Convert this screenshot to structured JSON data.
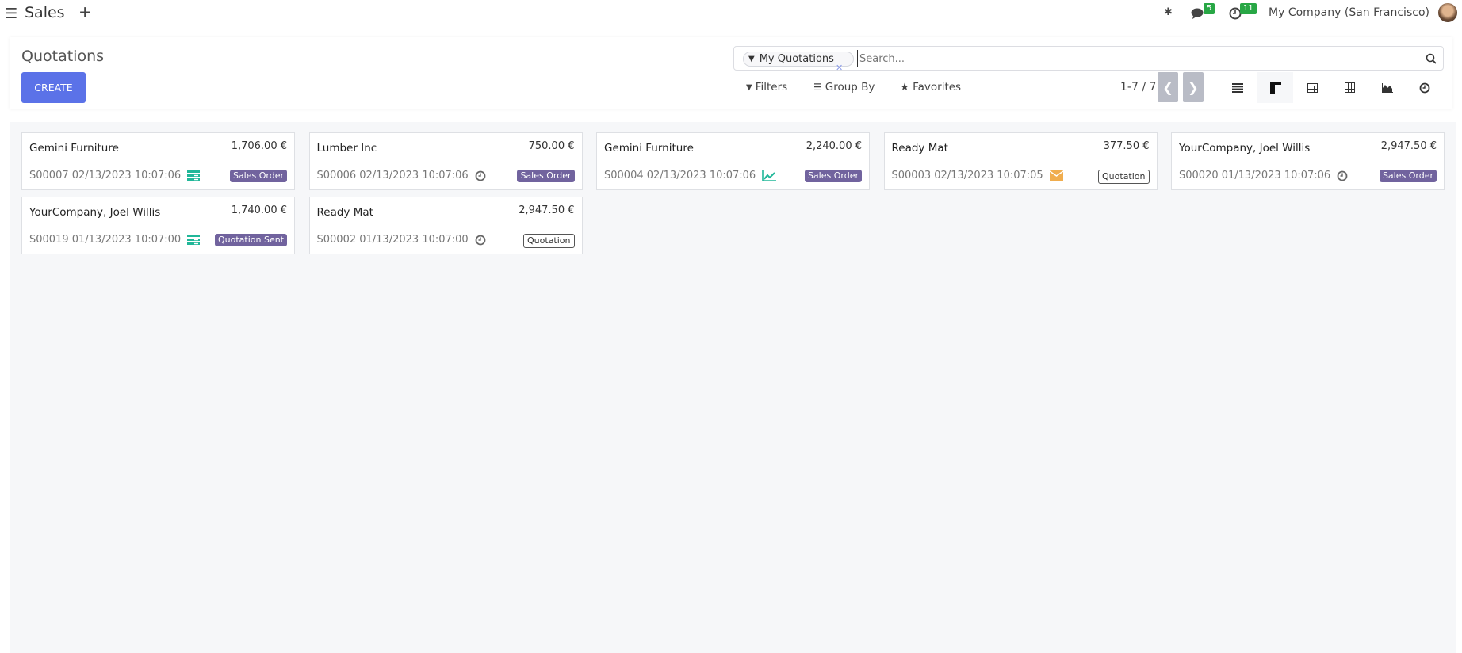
{
  "navbar": {
    "app_title": "Sales",
    "company": "My Company (San Francisco)",
    "messages_count": "5",
    "activities_count": "11"
  },
  "control_panel": {
    "title": "Quotations",
    "create_label": "CREATE",
    "search": {
      "facet": "My Quotations",
      "placeholder": "Search..."
    },
    "filters_label": "Filters",
    "group_by_label": "Group By",
    "favorites_label": "Favorites",
    "pager": "1-7 / 7",
    "views": [
      {
        "name": "list",
        "active": false
      },
      {
        "name": "kanban",
        "active": true
      },
      {
        "name": "calendar",
        "active": false
      },
      {
        "name": "pivot",
        "active": false
      },
      {
        "name": "graph",
        "active": false
      },
      {
        "name": "activity",
        "active": false
      }
    ]
  },
  "colors": {
    "primary": "#5b72e8",
    "tag": "#71639e",
    "activity_green": "#21b799",
    "activity_orange": "#f0ad4e"
  },
  "cards": [
    {
      "customer": "Gemini Furniture",
      "amount": "1,706.00 €",
      "ref": "S00007 02/13/2023 10:07:06",
      "activity": "list-icon",
      "status": "Sales Order",
      "style": "filled"
    },
    {
      "customer": "Lumber Inc",
      "amount": "750.00 €",
      "ref": "S00006 02/13/2023 10:07:06",
      "activity": "clock-icon",
      "status": "Sales Order",
      "style": "filled"
    },
    {
      "customer": "Gemini Furniture",
      "amount": "2,240.00 €",
      "ref": "S00004 02/13/2023 10:07:06",
      "activity": "chart-line-icon",
      "status": "Sales Order",
      "style": "filled"
    },
    {
      "customer": "Ready Mat",
      "amount": "377.50 €",
      "ref": "S00003 02/13/2023 10:07:05",
      "activity": "envelope-icon",
      "status": "Quotation",
      "style": "outline"
    },
    {
      "customer": "YourCompany, Joel Willis",
      "amount": "2,947.50 €",
      "ref": "S00020 01/13/2023 10:07:06",
      "activity": "clock-icon",
      "status": "Sales Order",
      "style": "filled"
    },
    {
      "customer": "YourCompany, Joel Willis",
      "amount": "1,740.00 €",
      "ref": "S00019 01/13/2023 10:07:00",
      "activity": "list-icon",
      "status": "Quotation Sent",
      "style": "filled"
    },
    {
      "customer": "Ready Mat",
      "amount": "2,947.50 €",
      "ref": "S00002 01/13/2023 10:07:00",
      "activity": "clock-icon",
      "status": "Quotation",
      "style": "outline"
    }
  ]
}
